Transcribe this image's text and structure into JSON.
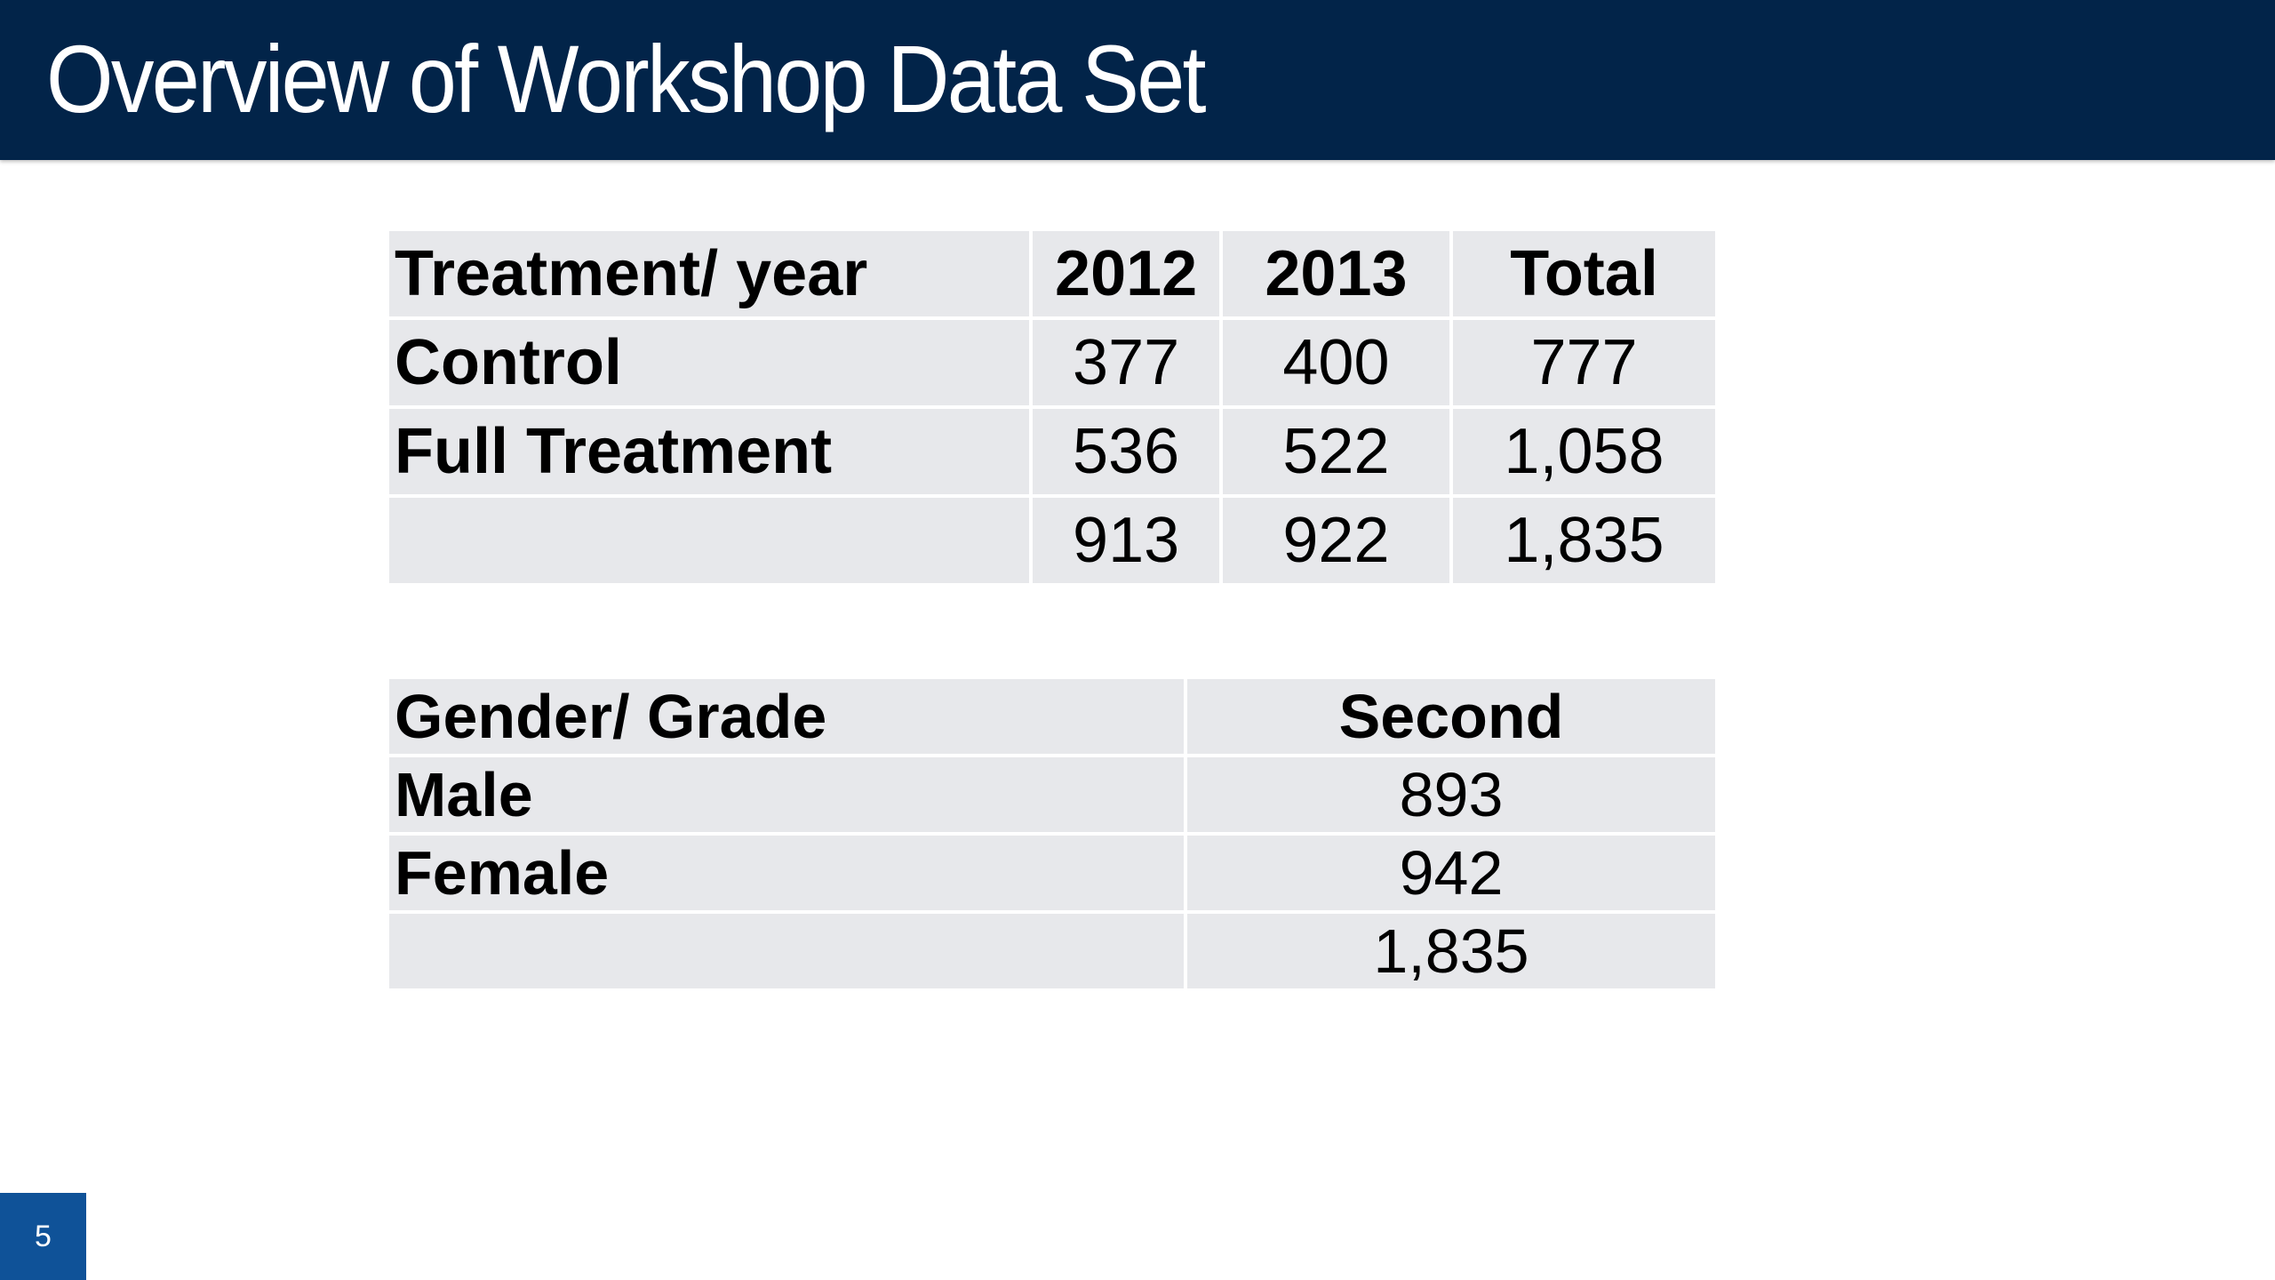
{
  "slide": {
    "title": "Overview of Workshop Data Set",
    "page_number": "5"
  },
  "colors": {
    "header_background": "#022449",
    "table_cell_background": "#e7e8eb",
    "page_badge_background": "#0f5298"
  },
  "treatment_table": {
    "headers": [
      "Treatment/ year",
      "2012",
      "2013",
      "Total"
    ],
    "rows": [
      {
        "label": "Control",
        "y2012": "377",
        "y2013": "400",
        "total": "777"
      },
      {
        "label": "Full Treatment",
        "y2012": "536",
        "y2013": "522",
        "total": "1,058"
      },
      {
        "label": "",
        "y2012": "913",
        "y2013": "922",
        "total": "1,835"
      }
    ]
  },
  "gender_table": {
    "headers": [
      "Gender/ Grade",
      "Second"
    ],
    "rows": [
      {
        "label": "Male",
        "second": "893"
      },
      {
        "label": "Female",
        "second": "942"
      },
      {
        "label": "",
        "second": "1,835"
      }
    ]
  }
}
